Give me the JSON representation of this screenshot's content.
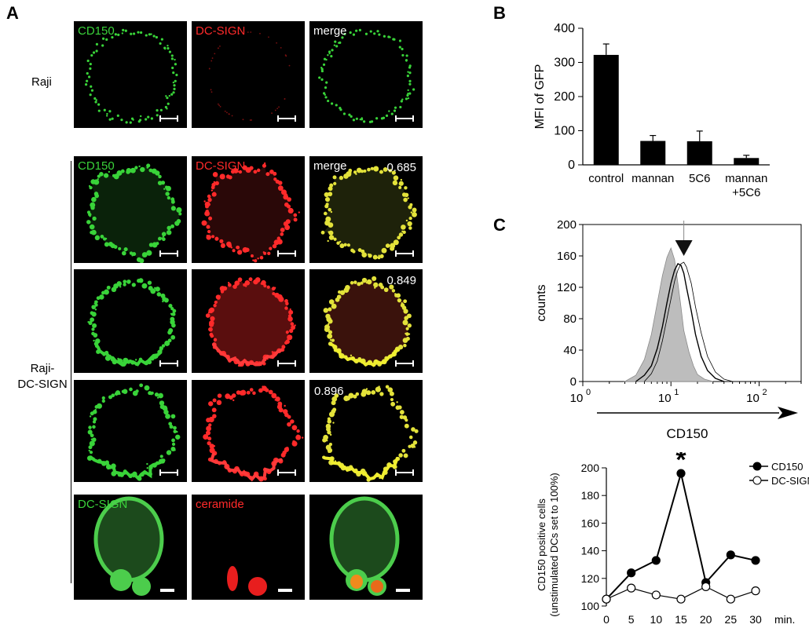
{
  "panel_letters": {
    "a": "A",
    "b": "B",
    "c": "C"
  },
  "panel_a": {
    "raji_label": "Raji",
    "raji_dcsign_label": [
      "Raji-",
      "DC-SIGN"
    ],
    "rows": [
      {
        "tiles": [
          {
            "label": "CD150",
            "label_color": "#3ad23a",
            "kind": "green-ring"
          },
          {
            "label": "DC-SIGN",
            "label_color": "#ff2a2a",
            "kind": "red-faint"
          },
          {
            "label": "merge",
            "label_color": "#ffffff",
            "kind": "green-ring"
          }
        ],
        "coloc": ""
      },
      {
        "tiles": [
          {
            "label": "CD150",
            "label_color": "#3ad23a",
            "kind": "green-star"
          },
          {
            "label": "DC-SIGN",
            "label_color": "#ff2a2a",
            "kind": "red-star"
          },
          {
            "label": "merge",
            "label_color": "#ffffff",
            "kind": "yellow-star"
          }
        ],
        "coloc": "0.685"
      },
      {
        "tiles": [
          {
            "label": "",
            "label_color": "#3ad23a",
            "kind": "green-round"
          },
          {
            "label": "",
            "label_color": "#ff2a2a",
            "kind": "red-round"
          },
          {
            "label": "",
            "label_color": "#ffffff",
            "kind": "yellow-round"
          }
        ],
        "coloc": "0.849"
      },
      {
        "tiles": [
          {
            "label": "",
            "label_color": "#3ad23a",
            "kind": "green-spiky"
          },
          {
            "label": "",
            "label_color": "#ff2a2a",
            "kind": "red-spiky"
          },
          {
            "label": "",
            "label_color": "#ffffff",
            "kind": "yellow-spiky"
          }
        ],
        "coloc": "0.896"
      },
      {
        "tiles": [
          {
            "label": "DC-SIGN",
            "label_color": "#3ad23a",
            "kind": "green-blob"
          },
          {
            "label": "ceramide",
            "label_color": "#ff2a2a",
            "kind": "red-caps"
          },
          {
            "label": "",
            "label_color": "#ffffff",
            "kind": "merge-blob"
          }
        ],
        "coloc": ""
      }
    ]
  },
  "chart_data": [
    {
      "type": "bar",
      "categories": [
        "control",
        "mannan",
        "5C6",
        "mannan\n+5C6"
      ],
      "values": [
        322,
        70,
        69,
        20
      ],
      "errors": [
        32,
        16,
        30,
        8
      ],
      "ylabel": "MFI of GFP",
      "ylim": [
        0,
        400
      ],
      "yticks": [
        0,
        100,
        200,
        300,
        400
      ]
    },
    {
      "type": "area",
      "xscale": "log",
      "xlim": [
        1,
        300
      ],
      "xticks": [
        {
          "base": "10",
          "exp": "0"
        },
        {
          "base": "10",
          "exp": "1"
        },
        {
          "base": "10",
          "exp": "2"
        }
      ],
      "ylim": [
        0,
        200
      ],
      "yticks": [
        0,
        40,
        80,
        120,
        160,
        200
      ],
      "ylabel": "counts",
      "xlabel": "CD150",
      "series": [
        {
          "style": "filled-gray",
          "x": [
            3,
            4,
            5,
            6,
            7,
            8,
            9,
            10,
            11,
            12,
            13,
            14,
            16,
            18,
            20,
            24,
            30
          ],
          "y": [
            0,
            8,
            28,
            60,
            100,
            135,
            158,
            170,
            155,
            125,
            95,
            65,
            38,
            20,
            9,
            3,
            0
          ]
        },
        {
          "style": "black-line",
          "x": [
            4,
            5,
            6,
            7,
            8,
            9,
            10,
            11,
            12,
            13,
            14,
            15,
            17,
            19,
            22,
            26,
            32,
            40
          ],
          "y": [
            0,
            8,
            20,
            42,
            70,
            100,
            125,
            142,
            150,
            148,
            138,
            120,
            90,
            60,
            32,
            14,
            4,
            0
          ]
        },
        {
          "style": "thin-line",
          "x": [
            5,
            6,
            7,
            8,
            9,
            10,
            11,
            12,
            13,
            14,
            15,
            17,
            19,
            22,
            26,
            32,
            40,
            50
          ],
          "y": [
            0,
            10,
            26,
            52,
            80,
            105,
            128,
            142,
            150,
            152,
            146,
            125,
            95,
            62,
            32,
            12,
            3,
            0
          ]
        }
      ],
      "annotation_arrow_x": 14
    },
    {
      "type": "line",
      "x": [
        0,
        5,
        10,
        15,
        20,
        25,
        30
      ],
      "xunit": "min.",
      "ylim": [
        100,
        200
      ],
      "yticks": [
        100,
        120,
        140,
        160,
        180,
        200
      ],
      "ylabel": [
        "CD150 positive cells",
        "(unstimulated DCs set to 100%)"
      ],
      "series": [
        {
          "name": "CD150",
          "marker": "filled",
          "values": [
            105,
            124,
            133,
            196,
            117,
            137,
            133
          ]
        },
        {
          "name": "DC-SIGN",
          "marker": "open",
          "values": [
            105,
            113,
            108,
            105,
            114,
            105,
            111
          ]
        }
      ],
      "annotation": {
        "text": "*",
        "x": 15
      }
    }
  ]
}
